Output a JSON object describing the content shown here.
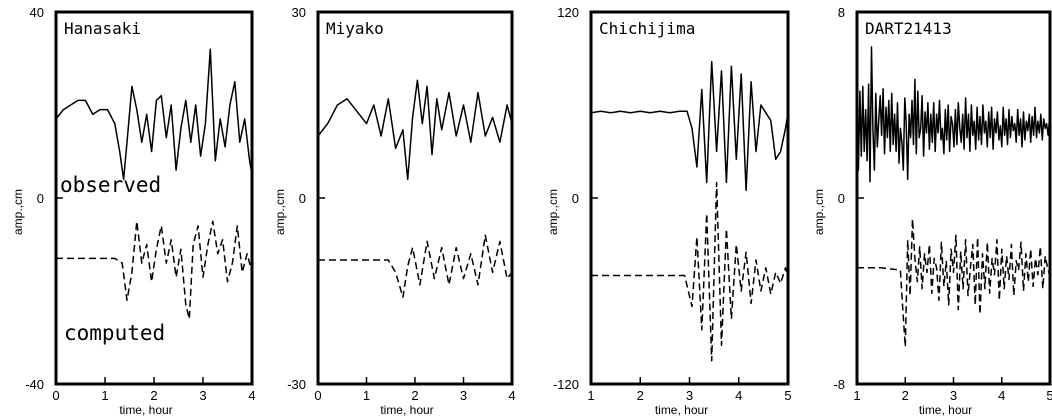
{
  "chart_data": [
    {
      "type": "line",
      "title": "Hanasaki",
      "xlabel": "time, hour",
      "ylabel": "amp.,cm",
      "xlim": [
        0,
        4
      ],
      "ylim": [
        -40,
        40
      ],
      "xticks": [
        "0",
        "1",
        "2",
        "3",
        "4"
      ],
      "yticks": [
        "40",
        "0",
        "-40"
      ],
      "annotations": [
        "observed",
        "computed"
      ],
      "series": [
        {
          "style": "solid",
          "x": [
            0,
            0.15,
            0.3,
            0.45,
            0.6,
            0.75,
            0.9,
            1.05,
            1.2,
            1.3,
            1.38,
            1.45,
            1.55,
            1.65,
            1.75,
            1.85,
            1.95,
            2.05,
            2.15,
            2.25,
            2.35,
            2.45,
            2.55,
            2.65,
            2.75,
            2.85,
            2.95,
            3.05,
            3.15,
            3.25,
            3.35,
            3.45,
            3.55,
            3.65,
            3.75,
            3.85,
            3.95,
            4.0
          ],
          "y": [
            17,
            19,
            20,
            21,
            21,
            18,
            19,
            19,
            16,
            10,
            4,
            12,
            24,
            19,
            12,
            18,
            10,
            21,
            22,
            13,
            20,
            6,
            15,
            21,
            12,
            20,
            9,
            16,
            32,
            8,
            17,
            11,
            20,
            25,
            12,
            17,
            8,
            5
          ]
        },
        {
          "style": "dashed",
          "x": [
            0,
            0.5,
            1.0,
            1.2,
            1.35,
            1.45,
            1.55,
            1.65,
            1.75,
            1.85,
            1.95,
            2.05,
            2.15,
            2.25,
            2.35,
            2.45,
            2.55,
            2.65,
            2.72,
            2.8,
            2.9,
            3.0,
            3.1,
            3.2,
            3.3,
            3.4,
            3.5,
            3.6,
            3.7,
            3.8,
            3.9,
            4.0
          ],
          "y": [
            -13,
            -13,
            -13,
            -13,
            -14,
            -22,
            -16,
            -5,
            -14,
            -10,
            -18,
            -11,
            -6,
            -14,
            -9,
            -17,
            -11,
            -23,
            -26,
            -10,
            -6,
            -17,
            -10,
            -5,
            -12,
            -9,
            -18,
            -14,
            -6,
            -16,
            -12,
            -16
          ]
        }
      ]
    },
    {
      "type": "line",
      "title": "Miyako",
      "xlabel": "time, hour",
      "ylabel": "amp.,cm",
      "xlim": [
        0,
        4
      ],
      "ylim": [
        -30,
        30
      ],
      "xticks": [
        "0",
        "1",
        "2",
        "3",
        "4"
      ],
      "yticks": [
        "30",
        "0",
        "-30"
      ],
      "series": [
        {
          "style": "solid",
          "x": [
            0,
            0.2,
            0.4,
            0.6,
            0.8,
            1.0,
            1.15,
            1.3,
            1.45,
            1.6,
            1.75,
            1.85,
            1.95,
            2.05,
            2.15,
            2.25,
            2.35,
            2.45,
            2.55,
            2.7,
            2.85,
            3.0,
            3.15,
            3.3,
            3.45,
            3.6,
            3.75,
            3.9,
            4.0
          ],
          "y": [
            10,
            12,
            15,
            16,
            14,
            12,
            15,
            10,
            16,
            8,
            11,
            3,
            13,
            19,
            12,
            18,
            7,
            16,
            11,
            17,
            10,
            15,
            9,
            17,
            10,
            13,
            9,
            15,
            12
          ]
        },
        {
          "style": "dashed",
          "x": [
            0,
            0.5,
            1.0,
            1.3,
            1.45,
            1.6,
            1.75,
            1.85,
            1.95,
            2.1,
            2.25,
            2.4,
            2.55,
            2.7,
            2.85,
            3.0,
            3.15,
            3.3,
            3.45,
            3.6,
            3.75,
            3.9,
            4.0
          ],
          "y": [
            -10,
            -10,
            -10,
            -10,
            -10,
            -12,
            -16,
            -11,
            -8,
            -14,
            -7,
            -13,
            -8,
            -14,
            -8,
            -13,
            -9,
            -14,
            -6,
            -12,
            -7,
            -13,
            -12
          ]
        }
      ]
    },
    {
      "type": "line",
      "title": "Chichijima",
      "xlabel": "time, hour",
      "ylabel": "amp.,cm",
      "xlim": [
        1,
        5
      ],
      "ylim": [
        -120,
        120
      ],
      "xticks": [
        "1",
        "2",
        "3",
        "4",
        "5"
      ],
      "yticks": [
        "120",
        "0",
        "-120"
      ],
      "series": [
        {
          "style": "solid",
          "x": [
            1.0,
            1.2,
            1.4,
            1.6,
            1.8,
            2.0,
            2.2,
            2.4,
            2.6,
            2.8,
            2.95,
            3.05,
            3.15,
            3.25,
            3.35,
            3.45,
            3.55,
            3.65,
            3.75,
            3.85,
            3.95,
            4.05,
            4.15,
            4.25,
            4.35,
            4.45,
            4.55,
            4.65,
            4.75,
            4.85,
            4.95,
            5.0
          ],
          "y": [
            55,
            56,
            55,
            56,
            55,
            56,
            55,
            56,
            55,
            56,
            56,
            45,
            20,
            70,
            10,
            88,
            30,
            82,
            10,
            85,
            25,
            80,
            5,
            75,
            30,
            60,
            55,
            50,
            25,
            30,
            45,
            55
          ]
        },
        {
          "style": "dashed",
          "x": [
            1.0,
            1.5,
            2.0,
            2.5,
            2.9,
            3.05,
            3.15,
            3.25,
            3.35,
            3.45,
            3.55,
            3.65,
            3.75,
            3.85,
            3.95,
            4.05,
            4.15,
            4.25,
            4.35,
            4.45,
            4.55,
            4.65,
            4.75,
            4.85,
            4.95,
            5.0
          ],
          "y": [
            -50,
            -50,
            -50,
            -50,
            -50,
            -70,
            -25,
            -85,
            -10,
            -105,
            10,
            -95,
            -20,
            -78,
            -30,
            -60,
            -35,
            -68,
            -40,
            -60,
            -45,
            -62,
            -48,
            -55,
            -45,
            -50
          ]
        }
      ]
    },
    {
      "type": "line",
      "title": "DART21413",
      "xlabel": "time, hour",
      "ylabel": "amp.,cm",
      "xlim": [
        1,
        5
      ],
      "ylim": [
        -8,
        8
      ],
      "xticks": [
        "1",
        "2",
        "3",
        "4",
        "5"
      ],
      "yticks": [
        "8",
        "0",
        "-8"
      ],
      "series": [
        {
          "style": "solid",
          "x": [
            1.0,
            1.03,
            1.06,
            1.09,
            1.12,
            1.15,
            1.18,
            1.21,
            1.24,
            1.27,
            1.3,
            1.33,
            1.36,
            1.39,
            1.42,
            1.45,
            1.48,
            1.51,
            1.54,
            1.57,
            1.6,
            1.63,
            1.66,
            1.69,
            1.72,
            1.75,
            1.78,
            1.81,
            1.84,
            1.87,
            1.9,
            1.93,
            1.96,
            1.99,
            2.02,
            2.05,
            2.08,
            2.11,
            2.14,
            2.17,
            2.2,
            2.23,
            2.26,
            2.29,
            2.32,
            2.35,
            2.38,
            2.41,
            2.44,
            2.47,
            2.5,
            2.53,
            2.56,
            2.59,
            2.62,
            2.65,
            2.68,
            2.71,
            2.74,
            2.77,
            2.8,
            2.83,
            2.86,
            2.89,
            2.92,
            2.95,
            2.98,
            3.01,
            3.04,
            3.07,
            3.1,
            3.13,
            3.16,
            3.19,
            3.22,
            3.25,
            3.28,
            3.31,
            3.34,
            3.37,
            3.4,
            3.43,
            3.46,
            3.49,
            3.52,
            3.55,
            3.58,
            3.61,
            3.64,
            3.67,
            3.7,
            3.73,
            3.76,
            3.79,
            3.82,
            3.85,
            3.88,
            3.91,
            3.94,
            3.97,
            4.0,
            4.03,
            4.06,
            4.09,
            4.12,
            4.15,
            4.18,
            4.21,
            4.24,
            4.27,
            4.3,
            4.33,
            4.36,
            4.39,
            4.42,
            4.45,
            4.48,
            4.51,
            4.54,
            4.57,
            4.6,
            4.63,
            4.66,
            4.69,
            4.72,
            4.75,
            4.78,
            4.81,
            4.84,
            4.87,
            4.9,
            4.93,
            4.96,
            4.99
          ],
          "y": [
            3.5,
            1.2,
            4.6,
            1.8,
            4.8,
            2.0,
            3.8,
            1.6,
            4.9,
            0.7,
            6.5,
            3.0,
            1.2,
            4.5,
            2.2,
            3.3,
            4.4,
            2.7,
            4.7,
            1.9,
            3.9,
            2.6,
            4.2,
            2.0,
            4.5,
            2.3,
            3.6,
            2.0,
            4.1,
            1.5,
            3.0,
            2.4,
            1.2,
            4.3,
            3.2,
            0.8,
            3.6,
            2.6,
            4.2,
            2.3,
            5.1,
            1.9,
            4.6,
            2.6,
            3.0,
            4.4,
            1.8,
            3.7,
            2.8,
            4.1,
            2.1,
            3.6,
            2.4,
            4.1,
            2.0,
            3.6,
            2.8,
            4.2,
            2.5,
            3.0,
            1.9,
            3.8,
            2.5,
            4.0,
            2.0,
            3.5,
            3.2,
            2.2,
            3.8,
            2.3,
            4.1,
            3.0,
            2.4,
            3.6,
            2.1,
            4.3,
            2.6,
            3.6,
            2.0,
            4.0,
            2.7,
            3.3,
            2.1,
            3.9,
            2.5,
            3.5,
            2.3,
            4.0,
            2.8,
            3.3,
            2.2,
            3.7,
            2.6,
            3.9,
            2.1,
            3.4,
            2.8,
            3.7,
            2.5,
            3.1,
            2.2,
            3.9,
            2.7,
            3.4,
            2.3,
            3.8,
            2.6,
            3.5,
            2.9,
            3.2,
            2.4,
            3.8,
            2.7,
            3.4,
            2.2,
            3.7,
            2.5,
            3.3,
            2.9,
            3.6,
            2.4,
            3.5,
            2.7,
            3.9,
            2.6,
            3.3,
            2.8,
            3.6,
            2.5,
            3.4,
            3.0,
            3.2,
            2.7,
            3.4
          ]
        },
        {
          "style": "dashed",
          "x": [
            1.0,
            1.5,
            1.9,
            1.95,
            2.0,
            2.05,
            2.1,
            2.15,
            2.2,
            2.25,
            2.3,
            2.35,
            2.4,
            2.45,
            2.5,
            2.55,
            2.6,
            2.65,
            2.7,
            2.75,
            2.8,
            2.85,
            2.9,
            2.95,
            3.0,
            3.05,
            3.1,
            3.15,
            3.2,
            3.25,
            3.3,
            3.35,
            3.4,
            3.45,
            3.5,
            3.55,
            3.6,
            3.65,
            3.7,
            3.75,
            3.8,
            3.85,
            3.9,
            3.95,
            4.0,
            4.05,
            4.1,
            4.15,
            4.2,
            4.25,
            4.3,
            4.35,
            4.4,
            4.45,
            4.5,
            4.55,
            4.6,
            4.65,
            4.7,
            4.75,
            4.8,
            4.85,
            4.9,
            4.95,
            5.0
          ],
          "y": [
            -3.0,
            -3.0,
            -3.1,
            -4.8,
            -6.4,
            -1.8,
            -4.2,
            -0.9,
            -2.6,
            -3.6,
            -2.1,
            -3.9,
            -2.4,
            -3.2,
            -2.0,
            -4.1,
            -2.6,
            -3.0,
            -4.4,
            -1.9,
            -3.8,
            -2.7,
            -4.6,
            -2.2,
            -3.2,
            -1.6,
            -4.8,
            -2.3,
            -3.9,
            -1.8,
            -4.2,
            -3.0,
            -2.0,
            -4.6,
            -1.7,
            -5.0,
            -2.4,
            -3.9,
            -1.9,
            -4.1,
            -2.6,
            -3.3,
            -1.8,
            -4.4,
            -2.2,
            -3.9,
            -2.5,
            -3.5,
            -2.0,
            -4.2,
            -2.7,
            -3.1,
            -1.9,
            -4.0,
            -2.4,
            -3.6,
            -2.2,
            -3.8,
            -2.6,
            -3.3,
            -2.1,
            -3.9,
            -2.5,
            -3.0,
            -3.4
          ]
        }
      ]
    }
  ]
}
